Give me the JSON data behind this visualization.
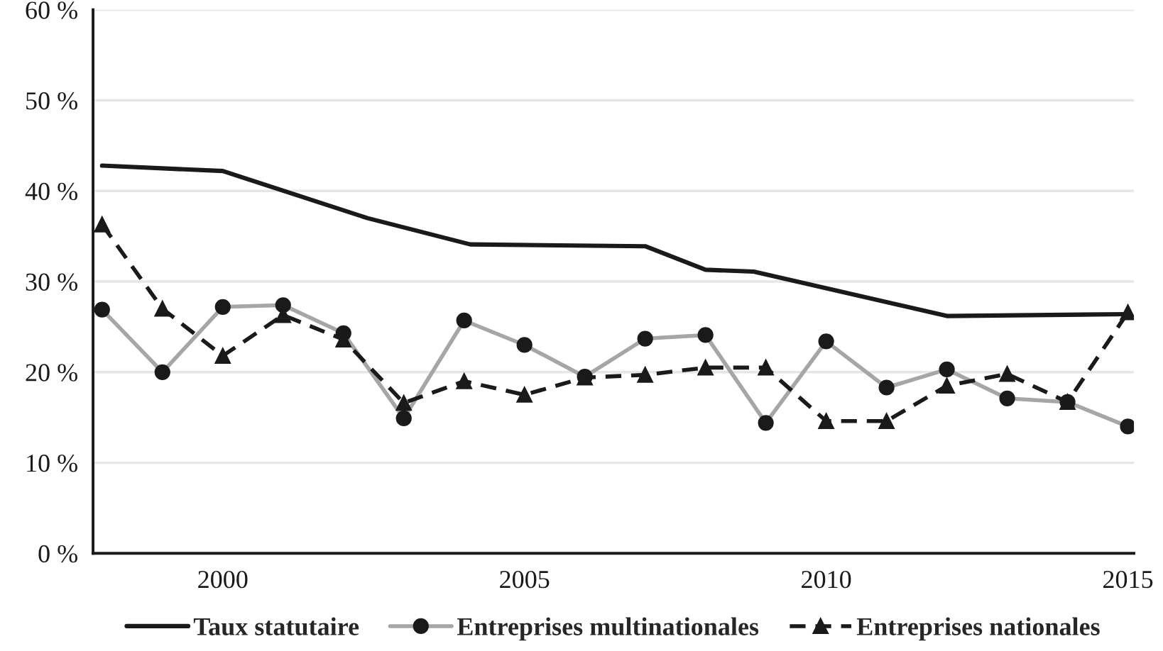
{
  "chart_data": {
    "type": "line",
    "x": [
      1998,
      1999,
      2000,
      2001,
      2002,
      2003,
      2004,
      2005,
      2006,
      2007,
      2008,
      2009,
      2010,
      2011,
      2012,
      2013,
      2014,
      2015
    ],
    "series": [
      {
        "name": "Taux statutaire",
        "color": "#1a1a1a",
        "x": [
          1998,
          2000,
          2002.4,
          2004.1,
          2007,
          2008,
          2008.8,
          2012,
          2015
        ],
        "values": [
          42.8,
          42.2,
          37.0,
          34.1,
          33.9,
          31.3,
          31.1,
          26.2,
          26.4
        ],
        "marker": "none",
        "line_style": "solid"
      },
      {
        "name": "Entreprises multinationales",
        "color": "#a6a6a6",
        "values": [
          26.9,
          20.0,
          27.2,
          27.4,
          24.3,
          14.9,
          25.7,
          23.0,
          19.5,
          23.7,
          24.1,
          14.4,
          23.4,
          18.3,
          20.3,
          17.1,
          16.7,
          14.0
        ],
        "marker": "circle",
        "line_style": "solid"
      },
      {
        "name": "Entreprises nationales",
        "color": "#1a1a1a",
        "values": [
          36.3,
          27.0,
          21.8,
          26.3,
          23.6,
          16.6,
          19.0,
          17.5,
          19.4,
          19.7,
          20.5,
          20.5,
          14.6,
          14.6,
          18.5,
          19.8,
          16.7,
          26.6
        ],
        "marker": "triangle",
        "line_style": "dashed"
      }
    ],
    "xlim": [
      1997.85,
      2015.1
    ],
    "xticks": [
      2000,
      2005,
      2010,
      2015
    ],
    "ylim": [
      0,
      60
    ],
    "yticks": [
      {
        "value": 0,
        "label": "0 %"
      },
      {
        "value": 10,
        "label": "10 %"
      },
      {
        "value": 20,
        "label": "20 %"
      },
      {
        "value": 30,
        "label": "30 %"
      },
      {
        "value": 40,
        "label": "40 %"
      },
      {
        "value": 50,
        "label": "50 %"
      },
      {
        "value": 60,
        "label": "60 %"
      }
    ],
    "grid": "y",
    "legend": "bottom"
  }
}
